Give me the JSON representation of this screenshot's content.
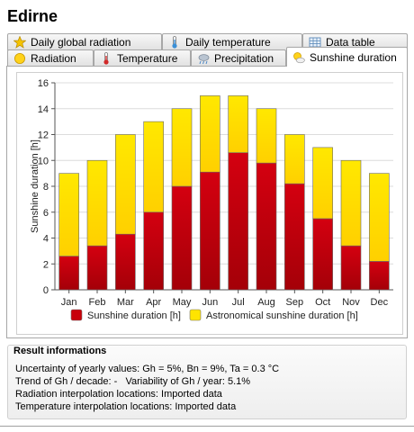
{
  "title": "Edirne",
  "tabs_back": [
    {
      "label": "Daily global radiation",
      "icon": "star-icon"
    },
    {
      "label": "Daily temperature",
      "icon": "thermometer-icon"
    },
    {
      "label": "Data table",
      "icon": "table-icon"
    }
  ],
  "tabs_front": [
    {
      "label": "Radiation",
      "icon": "sun-icon"
    },
    {
      "label": "Temperature",
      "icon": "thermometer-icon"
    },
    {
      "label": "Precipitation",
      "icon": "cloud-rain-icon"
    },
    {
      "label": "Sunshine duration",
      "icon": "sun-cloud-icon",
      "active": true
    }
  ],
  "chart_data": {
    "type": "bar",
    "stacked": true,
    "categories": [
      "Jan",
      "Feb",
      "Mar",
      "Apr",
      "May",
      "Jun",
      "Jul",
      "Aug",
      "Sep",
      "Oct",
      "Nov",
      "Dec"
    ],
    "series": [
      {
        "name": "Sunshine duration [h]",
        "color": "#c8000a",
        "values": [
          2.6,
          3.4,
          4.3,
          6.0,
          8.0,
          9.1,
          10.6,
          9.8,
          8.2,
          5.5,
          3.4,
          2.2
        ]
      },
      {
        "name": "Astronomical sunshine duration [h]",
        "color": "#ffe400",
        "values": [
          6.4,
          6.6,
          7.7,
          7.0,
          6.0,
          5.9,
          4.4,
          4.2,
          3.8,
          5.5,
          6.6,
          6.8
        ]
      }
    ],
    "ylabel": "Sunshine duration [h]",
    "ylim": [
      0,
      16
    ],
    "yticks": [
      0,
      2,
      4,
      6,
      8,
      10,
      12,
      14,
      16
    ],
    "grid": true,
    "legend": "bottom"
  },
  "result": {
    "title": "Result informations",
    "lines": [
      "Uncertainty of yearly values: Gh = 5%, Bn = 9%, Ta = 0.3 °C",
      "Trend of Gh / decade: -   Variability of Gh / year: 5.1%",
      "Radiation interpolation locations: Imported data",
      "Temperature interpolation locations: Imported data"
    ]
  }
}
